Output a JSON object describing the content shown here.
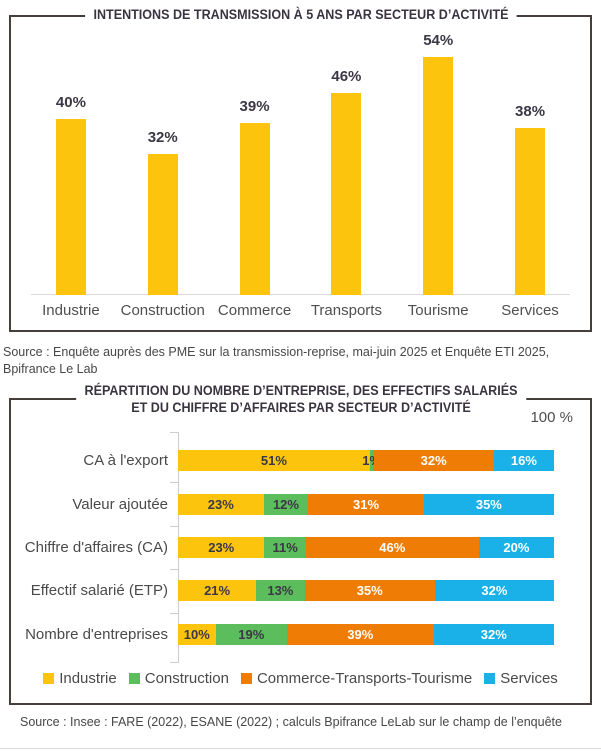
{
  "colors": {
    "industrie_yellow": "#FCC40D",
    "construction_green": "#5BBD5B",
    "commerce_orange": "#EF7D05",
    "services_blue": "#1AB1E8",
    "box_border": "#453E3B",
    "dark_label": "#3B3744",
    "white_label": "#FFFFFF"
  },
  "chart_data": [
    {
      "type": "bar",
      "title": "INTENTIONS DE TRANSMISSION À 5 ANS PAR SECTEUR D’ACTIVITÉ",
      "categories": [
        "Industrie",
        "Construction",
        "Commerce",
        "Transports",
        "Tourisme",
        "Services"
      ],
      "values": [
        40,
        32,
        39,
        46,
        54,
        38
      ],
      "unit": "%",
      "bar_color": "#FCC40D",
      "ylim": [
        0,
        60
      ],
      "legend_position": "none",
      "grid": false,
      "source_lines": [
        "Source : Enquête auprès des PME sur la transmission-reprise, mai-juin 2025 et Enquête ETI 2025,",
        "Bpifrance Le Lab"
      ]
    },
    {
      "type": "bar-stacked-horizontal",
      "title_line1": "RÉPARTITION DU NOMBRE D’ENTREPRISE, DES EFFECTIFS SALARIÉS",
      "title_line2": "ET DU CHIFFRE D’AFFAIRES PAR SECTEUR D’ACTIVITÉ",
      "axis_max_label": "100 %",
      "xlim": [
        0,
        100
      ],
      "unit": "%",
      "legend_position": "bottom",
      "categories": [
        "CA à l'export",
        "Valeur ajoutée",
        "Chiffre d'affaires (CA)",
        "Effectif salarié (ETP)",
        "Nombre d'entreprises"
      ],
      "series": [
        {
          "name": "Industrie",
          "color": "#FCC40D",
          "label_color": "#3B3744",
          "values": [
            51,
            23,
            23,
            21,
            10
          ]
        },
        {
          "name": "Construction",
          "color": "#5BBD5B",
          "label_color": "#3B3744",
          "values": [
            1,
            12,
            11,
            13,
            19
          ]
        },
        {
          "name": "Commerce-Transports-Tourisme",
          "color": "#EF7D05",
          "label_color": "#FFFFFF",
          "values": [
            32,
            31,
            46,
            35,
            39
          ]
        },
        {
          "name": "Services",
          "color": "#1AB1E8",
          "label_color": "#FFFFFF",
          "values": [
            16,
            35,
            20,
            32,
            32
          ]
        }
      ],
      "source_lines": [
        "Source : Insee : FARE (2022), ESANE (2022) ; calculs Bpifrance LeLab sur le champ de l’enquête"
      ]
    }
  ]
}
